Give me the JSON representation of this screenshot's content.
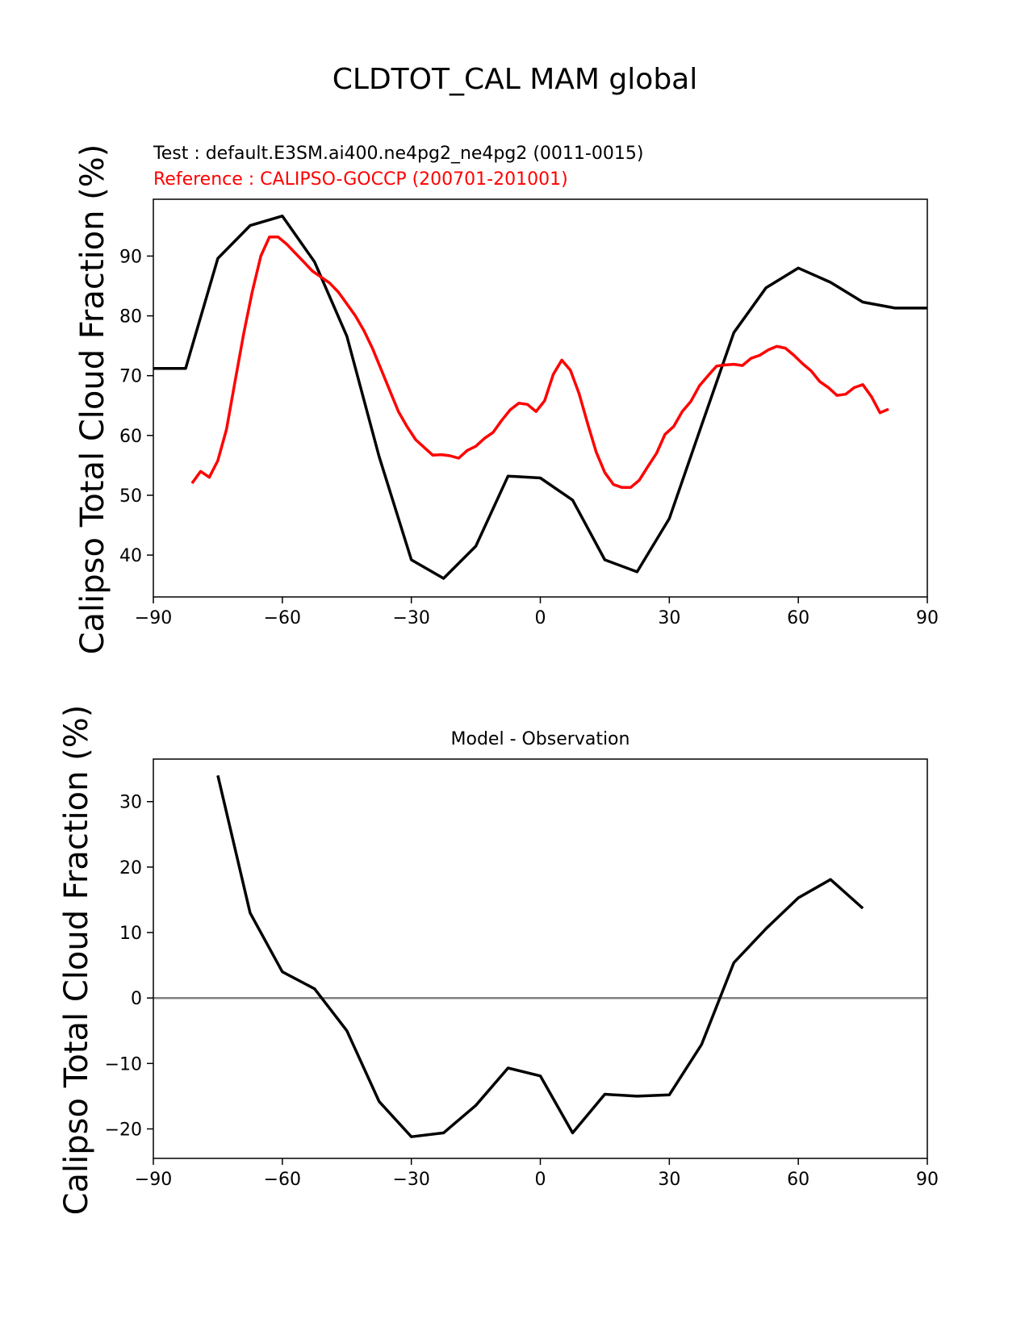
{
  "figure": {
    "title": "CLDTOT_CAL MAM global"
  },
  "chart_data": [
    {
      "type": "line",
      "test_label": "Test : default.E3SM.ai400.ne4pg2_ne4pg2 (0011-0015)",
      "reference_label": "Reference : CALIPSO-GOCCP (200701-201001)",
      "xlabel": "",
      "ylabel": "Calipso Total Cloud Fraction (%)",
      "xlim": [
        -90,
        90
      ],
      "ylim": [
        33,
        99.5
      ],
      "xticks": [
        -90,
        -60,
        -30,
        0,
        30,
        60,
        90
      ],
      "xtick_labels": [
        "−90",
        "−60",
        "−30",
        "0",
        "30",
        "60",
        "90"
      ],
      "yticks": [
        40,
        50,
        60,
        70,
        80,
        90
      ],
      "ytick_labels": [
        "40",
        "50",
        "60",
        "70",
        "80",
        "90"
      ],
      "grid": false,
      "series": [
        {
          "color": "#000000",
          "x": [
            -90,
            -82.5,
            -75,
            -67.5,
            -60,
            -52.5,
            -45,
            -37.5,
            -30,
            -22.5,
            -15,
            -7.5,
            0,
            7.5,
            15,
            22.5,
            30,
            37.5,
            45,
            52.5,
            60,
            67.5,
            75,
            82.5,
            90
          ],
          "y": [
            71.2,
            71.2,
            89.6,
            95.1,
            96.7,
            89.0,
            76.6,
            56.5,
            39.2,
            36.1,
            41.5,
            53.2,
            52.9,
            49.2,
            39.2,
            37.2,
            46.1,
            61.7,
            77.2,
            84.7,
            88.0,
            85.6,
            82.3,
            81.3,
            81.3
          ]
        },
        {
          "color": "#ff0000",
          "x": [
            -81,
            -79,
            -77,
            -75,
            -73,
            -71,
            -69,
            -67,
            -65,
            -63,
            -61,
            -59,
            -57,
            -55,
            -53,
            -51,
            -49,
            -47,
            -45,
            -43,
            -41,
            -39,
            -37,
            -35,
            -33,
            -31,
            -29,
            -27,
            -25,
            -23,
            -21,
            -19,
            -17,
            -15,
            -13,
            -11,
            -9,
            -7,
            -5,
            -3,
            -1,
            1,
            3,
            5,
            7,
            9,
            11,
            13,
            15,
            17,
            19,
            21,
            23,
            25,
            27,
            29,
            31,
            33,
            35,
            37,
            39,
            41,
            43,
            45,
            47,
            49,
            51,
            53,
            55,
            57,
            59,
            61,
            63,
            65,
            67,
            69,
            71,
            73,
            75,
            77,
            79,
            81
          ],
          "y": [
            52.0,
            54.0,
            53.0,
            55.8,
            61.0,
            69.0,
            77.0,
            84.0,
            90.0,
            93.2,
            93.2,
            92.0,
            90.5,
            89.0,
            87.5,
            86.5,
            85.5,
            84.0,
            82.0,
            80.0,
            77.5,
            74.5,
            71.0,
            67.5,
            64.0,
            61.5,
            59.3,
            58.0,
            56.7,
            56.8,
            56.6,
            56.2,
            57.5,
            58.2,
            59.5,
            60.5,
            62.5,
            64.3,
            65.4,
            65.2,
            64.0,
            65.8,
            70.2,
            72.6,
            70.9,
            67.0,
            62.0,
            57.2,
            53.8,
            51.8,
            51.3,
            51.3,
            52.5,
            54.8,
            57.0,
            60.2,
            61.5,
            64.0,
            65.7,
            68.3,
            70.0,
            71.6,
            71.8,
            71.9,
            71.7,
            72.9,
            73.4,
            74.3,
            74.9,
            74.6,
            73.4,
            72.0,
            70.8,
            69.0,
            68.0,
            66.7,
            66.9,
            68.0,
            68.5,
            66.5,
            63.8,
            64.4
          ]
        }
      ]
    },
    {
      "type": "line",
      "title": "Model - Observation",
      "xlabel": "",
      "ylabel": "Calipso Total Cloud Fraction (%)",
      "xlim": [
        -90,
        90
      ],
      "ylim": [
        -24.5,
        36.5
      ],
      "xticks": [
        -90,
        -60,
        -30,
        0,
        30,
        60,
        90
      ],
      "xtick_labels": [
        "−90",
        "−60",
        "−30",
        "0",
        "30",
        "60",
        "90"
      ],
      "yticks": [
        -20,
        -10,
        0,
        10,
        20,
        30
      ],
      "ytick_labels": [
        "−20",
        "−10",
        "0",
        "10",
        "20",
        "30"
      ],
      "grid": false,
      "zero_line": {
        "y": 0,
        "color": "#808080"
      },
      "series": [
        {
          "color": "#000000",
          "x": [
            -75,
            -67.5,
            -60,
            -52.5,
            -45,
            -37.5,
            -30,
            -22.5,
            -15,
            -7.5,
            0,
            7.5,
            15,
            22.5,
            30,
            37.5,
            45,
            52.5,
            60,
            67.5,
            75
          ],
          "y": [
            34.0,
            13.0,
            4.0,
            1.4,
            -5.0,
            -15.8,
            -21.2,
            -20.6,
            -16.4,
            -10.7,
            -11.9,
            -20.6,
            -14.7,
            -15.0,
            -14.8,
            -7.1,
            5.4,
            10.6,
            15.3,
            18.1,
            13.7
          ]
        }
      ]
    }
  ]
}
